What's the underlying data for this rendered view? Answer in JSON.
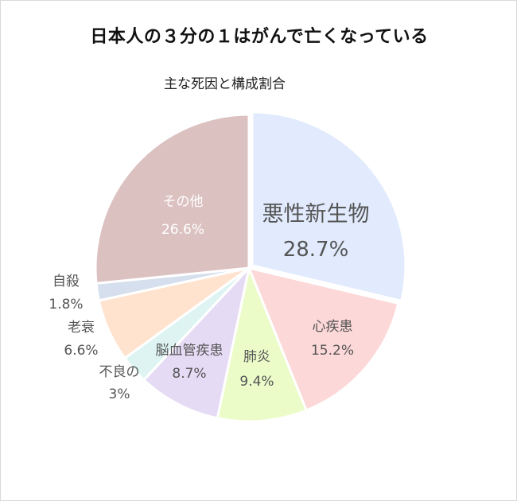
{
  "chart_data": {
    "type": "pie",
    "title": "日本人の３分の１はがんで亡くなっている",
    "subtitle": "主な死因と構成割合",
    "slices": [
      {
        "label": "悪性新生物",
        "value": 28.7,
        "value_text": "28.7%",
        "color": "#e1ebfd"
      },
      {
        "label": "心疾患",
        "value": 15.2,
        "value_text": "15.2%",
        "color": "#fdd8d8"
      },
      {
        "label": "肺炎",
        "value": 9.4,
        "value_text": "9.4%",
        "color": "#ecfcc9"
      },
      {
        "label": "脳血管疾患",
        "value": 8.7,
        "value_text": "8.7%",
        "color": "#e6dbf5"
      },
      {
        "label": "不良の",
        "label2": "3%",
        "value": 3.0,
        "value_text": "",
        "color": "#ddf4f3"
      },
      {
        "label": "老衰",
        "value": 6.6,
        "value_text": "6.6%",
        "color": "#ffe3cf"
      },
      {
        "label": "自殺",
        "value": 1.8,
        "value_text": "1.8%",
        "color": "#d6dfed"
      },
      {
        "label": "その他",
        "value": 26.6,
        "value_text": "26.6%",
        "color": "#dcc1c1"
      }
    ]
  }
}
